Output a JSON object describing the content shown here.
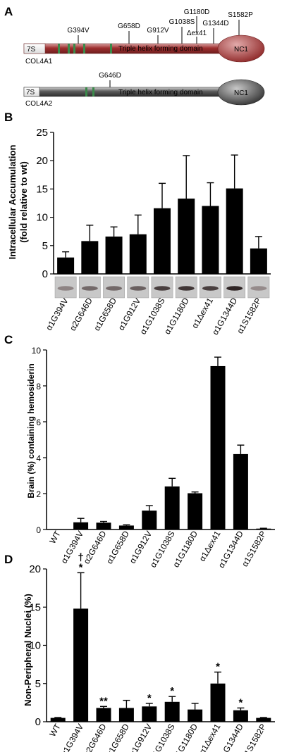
{
  "panels": {
    "a": "A",
    "b": "B",
    "c": "C",
    "d": "D"
  },
  "schematic": {
    "col4a1": {
      "name": "COL4A1",
      "sevens_label": "7S",
      "domain_label": "Triple helix forming domain",
      "nc1_label": "NC1",
      "color": "#a63a3a",
      "mutations": [
        "G394V",
        "G658D",
        "G912V",
        "G1038S",
        "G1180D",
        "Δex41",
        "G1344D",
        "S1582P"
      ]
    },
    "col4a2": {
      "name": "COL4A2",
      "sevens_label": "7S",
      "domain_label": "Triple helix forming domain",
      "nc1_label": "NC1",
      "color": "#555555",
      "mutations": [
        "G646D"
      ]
    }
  },
  "chart_data": [
    {
      "id": "B",
      "type": "bar",
      "ylabel_line1": "Intracellular Accumulation",
      "ylabel_line2": "(fold relative to wt)",
      "xlabel": "",
      "ylim": [
        0,
        25
      ],
      "yticks": [
        "0",
        "5",
        "10",
        "15",
        "20",
        "25"
      ],
      "categories": [
        "α1G394V",
        "α2G646D",
        "α1G658D",
        "α1G912V",
        "α1G1038S",
        "α1G1180D",
        "α1Δex41",
        "α1G1344D",
        "α1S1582P"
      ],
      "values": [
        2.9,
        5.8,
        6.6,
        7.0,
        11.6,
        13.3,
        12.0,
        15.1,
        4.5
      ],
      "errors": [
        1.0,
        2.8,
        1.7,
        3.4,
        4.4,
        7.6,
        4.1,
        5.9,
        2.1
      ],
      "blot_intensity": [
        0.35,
        0.5,
        0.5,
        0.55,
        0.75,
        0.8,
        0.75,
        0.9,
        0.3
      ]
    },
    {
      "id": "C",
      "type": "bar",
      "ylabel": "Brain (%) containing hemosiderin",
      "xlabel": "",
      "ylim": [
        0,
        10
      ],
      "yticks": [
        "0",
        "2",
        "4",
        "6",
        "8",
        "10"
      ],
      "categories": [
        "WT",
        "α1G394V",
        "α2G646D",
        "α1G658D",
        "α1G912V",
        "α1G1038S",
        "α1G1180D",
        "α1Δex41",
        "α1G1344D",
        "α1S1582P"
      ],
      "values": [
        0.0,
        0.4,
        0.38,
        0.22,
        1.05,
        2.4,
        2.02,
        9.1,
        4.2,
        0.05
      ],
      "errors": [
        0.0,
        0.22,
        0.07,
        0.04,
        0.28,
        0.45,
        0.07,
        0.5,
        0.5,
        0.02
      ]
    },
    {
      "id": "D",
      "type": "bar",
      "ylabel": "Non-Peripheral Nuclei (%)",
      "xlabel": "",
      "ylim": [
        0,
        20
      ],
      "yticks": [
        "0",
        "5",
        "10",
        "15",
        "20"
      ],
      "categories": [
        "WT",
        "α1G394V",
        "α2G646D",
        "α1G658D",
        "α1G912V",
        "α1G1038S",
        "α1G1180D",
        "α1Δex41",
        "α1G1344D",
        "α1S1582P"
      ],
      "values": [
        0.5,
        14.8,
        1.8,
        1.8,
        2.0,
        2.6,
        1.6,
        5.0,
        1.5,
        0.5
      ],
      "errors": [
        0.05,
        4.7,
        0.2,
        1.0,
        0.4,
        0.7,
        0.8,
        1.5,
        0.3,
        0.05
      ],
      "significance": [
        "",
        "*",
        "**",
        "",
        "*",
        "*",
        "",
        "*",
        "*",
        ""
      ],
      "dagger": [
        "",
        "†",
        "",
        "",
        "",
        "",
        "",
        "",
        "",
        ""
      ]
    }
  ]
}
